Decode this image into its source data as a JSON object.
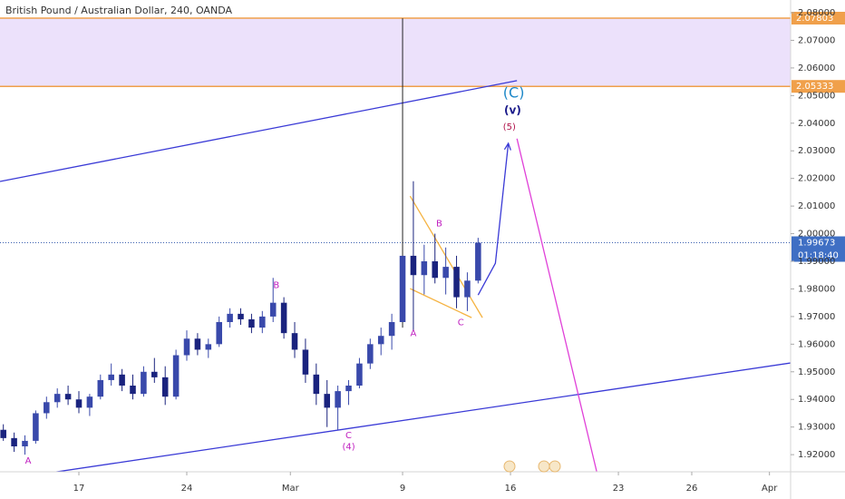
{
  "chart_data": {
    "type": "candlestick",
    "title": "British Pound / Australian Dollar, 240, OANDA",
    "x": [
      -3.5,
      -3,
      -2.5,
      -2,
      -1.5,
      -1,
      -0.5,
      0,
      0.5,
      1,
      1.5,
      2,
      2.5,
      3,
      3.5,
      4,
      4.5,
      5,
      5.5,
      6,
      6.5,
      7,
      7.5,
      8,
      8.5,
      9,
      9.5,
      10,
      10.5,
      11,
      11.5,
      12,
      12.5,
      13,
      13.5,
      14,
      14.5,
      15,
      15.5,
      16,
      16.5,
      17,
      17.5,
      18,
      18.5
    ],
    "open": [
      1.929,
      1.926,
      1.923,
      1.925,
      1.935,
      1.939,
      1.942,
      1.94,
      1.937,
      1.941,
      1.947,
      1.949,
      1.945,
      1.942,
      1.95,
      1.948,
      1.941,
      1.956,
      1.962,
      1.958,
      1.96,
      1.968,
      1.971,
      1.969,
      1.966,
      1.97,
      1.975,
      1.964,
      1.958,
      1.949,
      1.942,
      1.937,
      1.943,
      1.945,
      1.953,
      1.96,
      1.963,
      1.968,
      1.992,
      1.985,
      1.99,
      1.984,
      1.988,
      1.977,
      1.983
    ],
    "high": [
      1.931,
      1.928,
      1.927,
      1.936,
      1.941,
      1.944,
      1.945,
      1.943,
      1.942,
      1.949,
      1.953,
      1.951,
      1.949,
      1.952,
      1.955,
      1.952,
      1.958,
      1.965,
      1.964,
      1.962,
      1.97,
      1.973,
      1.973,
      1.971,
      1.972,
      1.984,
      1.977,
      1.968,
      1.962,
      1.953,
      1.947,
      1.945,
      1.947,
      1.955,
      1.962,
      1.966,
      1.971,
      2.078,
      2.019,
      1.996,
      2.0,
      1.995,
      1.992,
      1.986,
      1.9985
    ],
    "low": [
      1.925,
      1.921,
      1.92,
      1.924,
      1.933,
      1.937,
      1.938,
      1.935,
      1.934,
      1.94,
      1.945,
      1.943,
      1.94,
      1.941,
      1.946,
      1.938,
      1.94,
      1.954,
      1.956,
      1.955,
      1.959,
      1.966,
      1.967,
      1.964,
      1.964,
      1.968,
      1.962,
      1.955,
      1.946,
      1.938,
      1.93,
      1.929,
      1.938,
      1.944,
      1.951,
      1.956,
      1.958,
      1.966,
      1.965,
      1.978,
      1.982,
      1.978,
      1.973,
      1.972,
      1.982
    ],
    "close": [
      1.926,
      1.923,
      1.925,
      1.935,
      1.939,
      1.942,
      1.94,
      1.937,
      1.941,
      1.947,
      1.949,
      1.945,
      1.942,
      1.95,
      1.948,
      1.941,
      1.956,
      1.962,
      1.958,
      1.96,
      1.968,
      1.971,
      1.969,
      1.966,
      1.97,
      1.975,
      1.964,
      1.958,
      1.949,
      1.942,
      1.937,
      1.943,
      1.945,
      1.953,
      1.96,
      1.963,
      1.968,
      1.992,
      1.985,
      1.99,
      1.984,
      1.988,
      1.977,
      1.983,
      1.99673
    ],
    "up_color": "#3949ab",
    "down_color": "#1a237e",
    "xlim": [
      -3.655,
      32.98
    ],
    "ylim": [
      1.9138,
      2.0846
    ],
    "xticks": [
      {
        "value": 0,
        "label": "17"
      },
      {
        "value": 5,
        "label": "24"
      },
      {
        "value": 9.8,
        "label": "Mar"
      },
      {
        "value": 15,
        "label": "9"
      },
      {
        "value": 20,
        "label": "16"
      },
      {
        "value": 25,
        "label": "23"
      },
      {
        "value": 28.4,
        "label": "26"
      },
      {
        "value": 32,
        "label": "Apr"
      }
    ],
    "yticks": [
      {
        "value": 2.08,
        "label": "2.08000"
      },
      {
        "value": 2.07,
        "label": "2.07000"
      },
      {
        "value": 2.06,
        "label": "2.06000"
      },
      {
        "value": 2.05,
        "label": "2.05000"
      },
      {
        "value": 2.04,
        "label": "2.04000"
      },
      {
        "value": 2.03,
        "label": "2.03000"
      },
      {
        "value": 2.02,
        "label": "2.02000"
      },
      {
        "value": 2.01,
        "label": "2.01000"
      },
      {
        "value": 2.0,
        "label": "2.00000"
      },
      {
        "value": 1.99,
        "label": "1.99000"
      },
      {
        "value": 1.98,
        "label": "1.98000"
      },
      {
        "value": 1.97,
        "label": "1.97000"
      },
      {
        "value": 1.96,
        "label": "1.96000"
      },
      {
        "value": 1.95,
        "label": "1.95000"
      },
      {
        "value": 1.94,
        "label": "1.94000"
      },
      {
        "value": 1.93,
        "label": "1.93000"
      },
      {
        "value": 1.92,
        "label": "1.92000"
      }
    ],
    "last_price": 1.99673,
    "countdown": "01:18:40",
    "zone": {
      "ymin": 2.05333,
      "ymax": 2.07803,
      "fill": "#ece1fb",
      "edge_color": "#f0a04b"
    },
    "trendlines": [
      {
        "x": [
          -3.655,
          20.3
        ],
        "y": [
          2.0189,
          2.0554
        ],
        "color": "#3a3ad6"
      },
      {
        "x": [
          -2.4,
          32.98
        ],
        "y": [
          1.9122,
          1.9532
        ],
        "color": "#3a3ad6"
      },
      {
        "x": [
          15.35,
          18.7
        ],
        "y": [
          2.0136,
          1.9696
        ],
        "color": "#f5b342"
      },
      {
        "x": [
          15.35,
          18.2
        ],
        "y": [
          1.9801,
          1.9696
        ],
        "color": "#f5b342"
      },
      {
        "x": [
          18.5,
          19.3,
          19.9
        ],
        "y": [
          1.9778,
          1.9893,
          2.0327
        ],
        "color": "#3a3ad6",
        "arrow": true
      },
      {
        "x": [
          20.3,
          24.3
        ],
        "y": [
          2.0344,
          1.9039
        ],
        "color": "#e040d8"
      }
    ],
    "annotations": [
      {
        "text": "A",
        "x": -2.35,
        "y": 1.9177,
        "color": "#c020c0"
      },
      {
        "text": "B",
        "x": 9.15,
        "y": 1.9813,
        "color": "#c020c0"
      },
      {
        "text": "C",
        "x": 12.5,
        "y": 1.9269,
        "color": "#c020c0"
      },
      {
        "text": "(4)",
        "x": 12.5,
        "y": 1.9229,
        "color": "#c020c0"
      },
      {
        "text": "A",
        "x": 15.5,
        "y": 1.9639,
        "color": "#c020c0"
      },
      {
        "text": "B",
        "x": 16.7,
        "y": 2.0036,
        "color": "#c020c0"
      },
      {
        "text": "C",
        "x": 17.7,
        "y": 1.9679,
        "color": "#c020c0"
      },
      {
        "text": "(5)",
        "x": 19.95,
        "y": 2.0386,
        "color": "#b0124a"
      },
      {
        "text": "(v)",
        "x": 20.1,
        "y": 2.0445,
        "color": "#1a1a8a"
      },
      {
        "text": "(C)",
        "x": 20.15,
        "y": 2.0508,
        "color": "#1e88c8"
      }
    ]
  }
}
